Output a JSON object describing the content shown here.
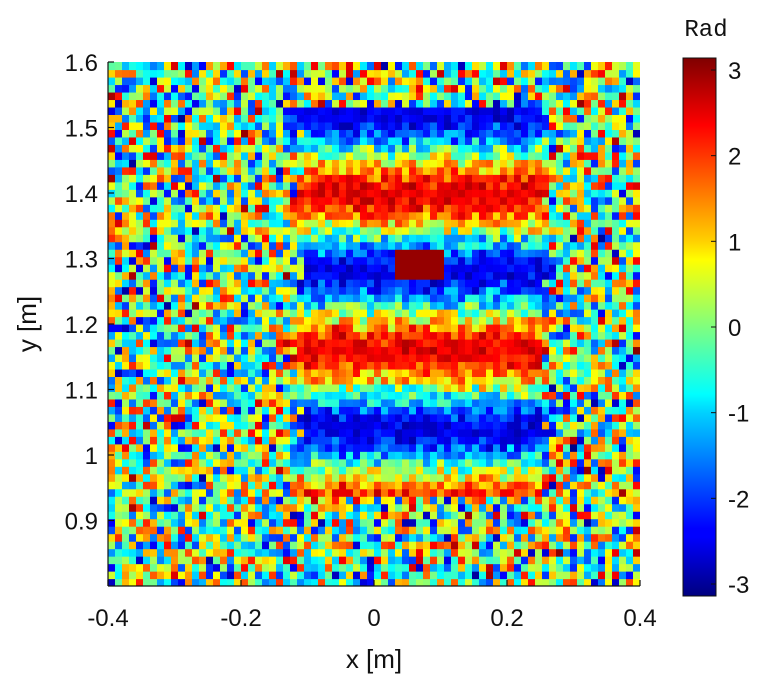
{
  "chart_data": {
    "type": "heatmap",
    "title": "",
    "xlabel": "x [m]",
    "ylabel": "y [m]",
    "xlim": [
      -0.4,
      0.4
    ],
    "ylim": [
      0.8,
      1.6
    ],
    "xticks": [
      -0.4,
      -0.2,
      0,
      0.2,
      0.4
    ],
    "xtick_labels": [
      "-0.4",
      "-0.2",
      "0",
      "0.2",
      "0.4"
    ],
    "yticks": [
      0.9,
      1,
      1.1,
      1.2,
      1.3,
      1.4,
      1.5,
      1.6
    ],
    "ytick_labels": [
      "0.9",
      "1",
      "1.1",
      "1.2",
      "1.3",
      "1.4",
      "1.5",
      "1.6"
    ],
    "colorbar": {
      "title": "Rad",
      "range": [
        -3.14,
        3.14
      ],
      "ticks": [
        -3,
        -2,
        -1,
        0,
        1,
        2,
        3
      ],
      "tick_labels": [
        "-3",
        "-2",
        "-1",
        "0",
        "1",
        "2",
        "3"
      ],
      "colormap": "jet"
    },
    "grid": false,
    "description_regions": [
      {
        "name": "object-region",
        "x": [
          -0.12,
          0.26
        ],
        "y": [
          0.94,
          1.53
        ]
      },
      {
        "name": "bright-spot",
        "x": [
          0.03,
          0.11
        ],
        "y": [
          1.27,
          1.31
        ],
        "value": 3.0
      }
    ]
  }
}
